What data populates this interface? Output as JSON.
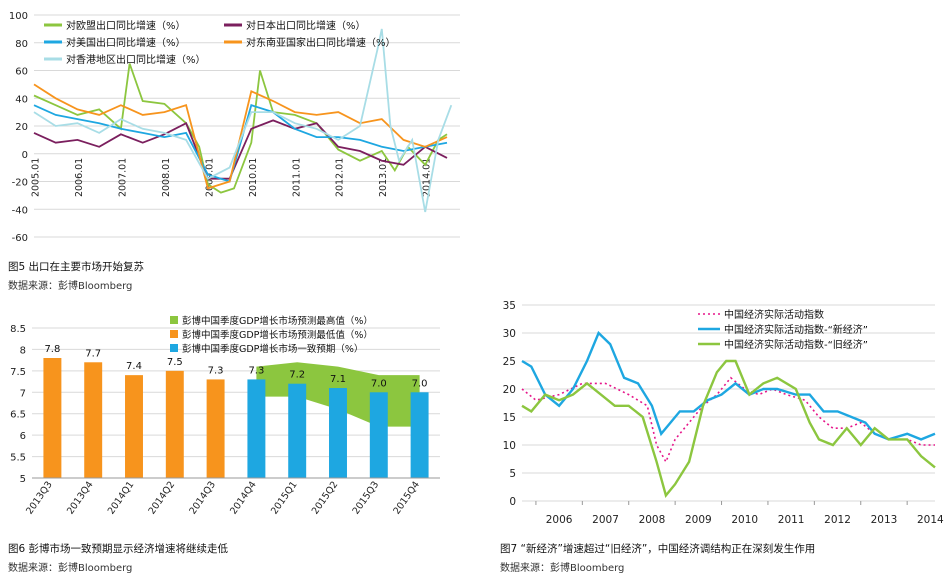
{
  "captions": {
    "fig5": "图5 出口在主要市场开始复苏",
    "fig6": "图6 彭博市场一致预期显示经济增速将继续走低",
    "fig7": "图7 “新经济”增速超过“旧经济”，中国经济调结构正在深刻发生作用",
    "source": "数据来源：彭博Bloomberg"
  },
  "chart_data": [
    {
      "id": "fig5",
      "type": "line",
      "ylim": [
        -60,
        100
      ],
      "yticks": [
        "-60",
        "-40",
        "-20",
        "0",
        "20",
        "40",
        "60",
        "80",
        "100"
      ],
      "xticks": [
        "2005.01",
        "2006.01",
        "2007.01",
        "2008.01",
        "2009.01",
        "2010.01",
        "2011.01",
        "2012.01",
        "2013.01",
        "2014.01"
      ],
      "legend_placement": "top-left",
      "grid": true,
      "series": [
        {
          "name": "对欧盟出口同比增速（%）",
          "color": "#8cc63f",
          "x": [
            2005.0,
            2005.5,
            2006.0,
            2006.5,
            2007.0,
            2007.2,
            2007.5,
            2008.0,
            2008.5,
            2008.8,
            2009.0,
            2009.3,
            2009.6,
            2010.0,
            2010.2,
            2010.5,
            2011.0,
            2011.5,
            2012.0,
            2012.5,
            2013.0,
            2013.3,
            2013.6,
            2014.0,
            2014.3,
            2014.5
          ],
          "y": [
            42,
            35,
            28,
            32,
            18,
            65,
            38,
            36,
            22,
            5,
            -22,
            -28,
            -25,
            8,
            60,
            30,
            28,
            22,
            3,
            -5,
            2,
            -12,
            5,
            -8,
            10,
            14
          ]
        },
        {
          "name": "对日本出口同比增速（%）",
          "color": "#7b1f5e",
          "x": [
            2005.0,
            2005.5,
            2006.0,
            2006.5,
            2007.0,
            2007.5,
            2008.0,
            2008.5,
            2009.0,
            2009.5,
            2010.0,
            2010.5,
            2011.0,
            2011.5,
            2012.0,
            2012.5,
            2013.0,
            2013.5,
            2014.0,
            2014.5
          ],
          "y": [
            15,
            8,
            10,
            5,
            14,
            8,
            14,
            22,
            -18,
            -18,
            18,
            24,
            18,
            22,
            5,
            2,
            -5,
            -8,
            5,
            -3
          ]
        },
        {
          "name": "对美国出口同比增速（%）",
          "color": "#1ea7e1",
          "x": [
            2005.0,
            2005.5,
            2006.0,
            2006.5,
            2007.0,
            2007.5,
            2008.0,
            2008.5,
            2009.0,
            2009.5,
            2010.0,
            2010.5,
            2011.0,
            2011.5,
            2012.0,
            2012.5,
            2013.0,
            2013.5,
            2014.0,
            2014.5
          ],
          "y": [
            35,
            28,
            25,
            22,
            18,
            15,
            12,
            15,
            -15,
            -20,
            35,
            30,
            18,
            12,
            12,
            10,
            5,
            2,
            5,
            8
          ]
        },
        {
          "name": "对东南亚国家出口同比增速（%）",
          "color": "#f7941d",
          "x": [
            2005.0,
            2005.5,
            2006.0,
            2006.5,
            2007.0,
            2007.5,
            2008.0,
            2008.5,
            2009.0,
            2009.5,
            2010.0,
            2010.5,
            2011.0,
            2011.5,
            2012.0,
            2012.5,
            2013.0,
            2013.5,
            2014.0,
            2014.5
          ],
          "y": [
            50,
            40,
            32,
            28,
            35,
            28,
            30,
            35,
            -25,
            -20,
            45,
            38,
            30,
            28,
            30,
            22,
            25,
            10,
            5,
            12
          ]
        },
        {
          "name": "对香港地区出口同比增速（%）",
          "color": "#a8dde6",
          "x": [
            2005.0,
            2005.5,
            2006.0,
            2006.5,
            2007.0,
            2007.5,
            2008.0,
            2008.5,
            2009.0,
            2009.5,
            2010.0,
            2010.5,
            2011.0,
            2011.5,
            2012.0,
            2012.5,
            2012.9,
            2013.0,
            2013.2,
            2013.4,
            2013.7,
            2014.0,
            2014.3,
            2014.6
          ],
          "y": [
            30,
            20,
            22,
            15,
            25,
            18,
            15,
            10,
            -18,
            -10,
            30,
            30,
            22,
            18,
            10,
            20,
            75,
            90,
            20,
            -5,
            10,
            -42,
            10,
            35
          ]
        }
      ]
    },
    {
      "id": "fig6",
      "type": "bar",
      "ylim": [
        5,
        8.5
      ],
      "yticks": [
        "5",
        "5.5",
        "6",
        "6.5",
        "7",
        "7.5",
        "8",
        "8.5"
      ],
      "categories": [
        "2013Q3",
        "2013Q4",
        "2014Q1",
        "2014Q2",
        "2014Q3",
        "2014Q4",
        "2015Q1",
        "2015Q2",
        "2015Q3",
        "2015Q4"
      ],
      "values": [
        7.8,
        7.7,
        7.4,
        7.5,
        7.3,
        7.3,
        7.2,
        7.1,
        7.0,
        7.0
      ],
      "bar_colors": [
        "#f7941d",
        "#f7941d",
        "#f7941d",
        "#f7941d",
        "#f7941d",
        "#1ea7e1",
        "#1ea7e1",
        "#1ea7e1",
        "#1ea7e1",
        "#1ea7e1"
      ],
      "labels": [
        "7.8",
        "7.7",
        "7.4",
        "7.5",
        "7.3",
        "7.3",
        "7.2",
        "7.1",
        "7.0",
        "7.0"
      ],
      "range_band": {
        "start_index": 5,
        "high": [
          7.6,
          7.7,
          7.6,
          7.4,
          7.4
        ],
        "low": [
          6.9,
          6.9,
          6.6,
          6.2,
          6.2
        ]
      },
      "legend_placement": "top-center",
      "grid": true,
      "legend": [
        {
          "name": "彭博中国季度GDP增长市场预测最高值（%）",
          "color": "#8cc63f"
        },
        {
          "name": "彭博中国季度GDP增长市场预测最低值（%）",
          "color": "#f7941d"
        },
        {
          "name": "彭博中国季度GDP增长市场一致预期（%）",
          "color": "#1ea7e1"
        }
      ]
    },
    {
      "id": "fig7",
      "type": "line",
      "ylim": [
        0,
        35
      ],
      "yticks": [
        "0",
        "5",
        "10",
        "15",
        "20",
        "25",
        "30",
        "35"
      ],
      "xlim": [
        2005.7,
        2014.6
      ],
      "xticks": [
        "2006",
        "2007",
        "2008",
        "2009",
        "2010",
        "2011",
        "2012",
        "2013",
        "2014"
      ],
      "legend_placement": "top-center",
      "grid": true,
      "series": [
        {
          "name": "中国经济实际活动指数",
          "color": "#e6158a",
          "dash": true,
          "x": [
            2005.7,
            2006.0,
            2006.5,
            2007.0,
            2007.5,
            2008.0,
            2008.4,
            2008.6,
            2008.8,
            2009.0,
            2009.3,
            2009.6,
            2009.9,
            2010.2,
            2010.5,
            2010.8,
            2011.1,
            2011.4,
            2011.8,
            2012.1,
            2012.4,
            2012.7,
            2013.0,
            2013.3,
            2013.6,
            2014.0,
            2014.3,
            2014.6
          ],
          "y": [
            20,
            18,
            19,
            21,
            21,
            19,
            17,
            10,
            7,
            11,
            14,
            17,
            19,
            22,
            20,
            19,
            20,
            19,
            18,
            15,
            13,
            13,
            14,
            12,
            11,
            11,
            10,
            10
          ]
        },
        {
          "name": "中国经济实际活动指数-“新经济”",
          "color": "#1ea7e1",
          "x": [
            2005.7,
            2005.9,
            2006.2,
            2006.5,
            2006.8,
            2007.1,
            2007.35,
            2007.6,
            2007.9,
            2008.2,
            2008.5,
            2008.7,
            2008.9,
            2009.1,
            2009.4,
            2009.7,
            2010.0,
            2010.3,
            2010.6,
            2010.9,
            2011.2,
            2011.6,
            2011.9,
            2012.2,
            2012.5,
            2012.8,
            2013.1,
            2013.3,
            2013.6,
            2014.0,
            2014.3,
            2014.6
          ],
          "y": [
            25,
            24,
            19,
            17,
            20,
            25,
            30,
            28,
            22,
            21,
            17,
            12,
            14,
            16,
            16,
            18,
            19,
            21,
            19,
            20,
            20,
            19,
            19,
            16,
            16,
            15,
            14,
            12,
            11,
            12,
            11,
            12
          ]
        },
        {
          "name": "中国经济实际活动指数-“旧经济”",
          "color": "#8cc63f",
          "x": [
            2005.7,
            2005.9,
            2006.2,
            2006.5,
            2006.8,
            2007.1,
            2007.4,
            2007.7,
            2008.0,
            2008.3,
            2008.6,
            2008.8,
            2009.0,
            2009.3,
            2009.6,
            2009.9,
            2010.1,
            2010.3,
            2010.6,
            2010.9,
            2011.2,
            2011.6,
            2011.9,
            2012.1,
            2012.4,
            2012.7,
            2013.0,
            2013.3,
            2013.6,
            2014.0,
            2014.3,
            2014.6
          ],
          "y": [
            17,
            16,
            19,
            18,
            19,
            21,
            19,
            17,
            17,
            15,
            7,
            1,
            3,
            7,
            17,
            23,
            25,
            25,
            19,
            21,
            22,
            20,
            14,
            11,
            10,
            13,
            10,
            13,
            11,
            11,
            8,
            6
          ]
        }
      ]
    }
  ]
}
